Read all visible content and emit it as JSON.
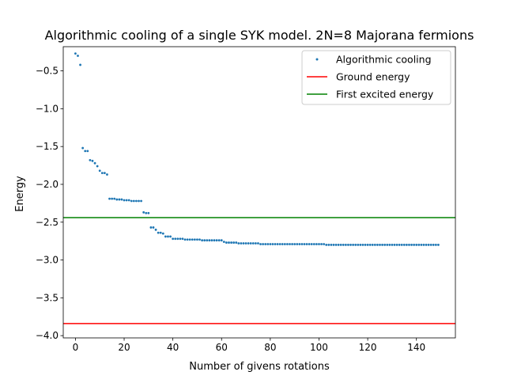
{
  "chart_data": {
    "type": "scatter",
    "title": "Algorithmic cooling of a single SYK model. 2N=8 Majorana fermions",
    "xlabel": "Number of givens rotations",
    "ylabel": "Energy",
    "xlim": [
      -5,
      156
    ],
    "ylim": [
      -4.03,
      -0.18
    ],
    "xticks": [
      0,
      20,
      40,
      60,
      80,
      100,
      120,
      140
    ],
    "xtick_labels": [
      "0",
      "20",
      "40",
      "60",
      "80",
      "100",
      "120",
      "140"
    ],
    "yticks": [
      -0.5,
      -1.0,
      -1.5,
      -2.0,
      -2.5,
      -3.0,
      -3.5,
      -4.0
    ],
    "ytick_labels": [
      "−0.5",
      "−1.0",
      "−1.5",
      "−2.0",
      "−2.5",
      "−3.0",
      "−3.5",
      "−4.0"
    ],
    "grid": false,
    "legend_position": "top-right",
    "series": [
      {
        "name": "Algorithmic cooling",
        "kind": "points",
        "color": "#1f77b4",
        "x": [
          0,
          1,
          2,
          3,
          4,
          5,
          6,
          7,
          8,
          9,
          10,
          11,
          12,
          13,
          14,
          15,
          16,
          17,
          18,
          19,
          20,
          21,
          22,
          23,
          24,
          25,
          26,
          27,
          28,
          29,
          30,
          31,
          32,
          33,
          34,
          35,
          36,
          37,
          38,
          39,
          40,
          41,
          42,
          43,
          44,
          45,
          46,
          47,
          48,
          49,
          50,
          51,
          52,
          53,
          54,
          55,
          56,
          57,
          58,
          59,
          60,
          61,
          62,
          63,
          64,
          65,
          66,
          67,
          68,
          69,
          70,
          71,
          72,
          73,
          74,
          75,
          76,
          77,
          78,
          79,
          80,
          81,
          82,
          83,
          84,
          85,
          86,
          87,
          88,
          89,
          90,
          91,
          92,
          93,
          94,
          95,
          96,
          97,
          98,
          99,
          100,
          101,
          102,
          103,
          104,
          105,
          106,
          107,
          108,
          109,
          110,
          111,
          112,
          113,
          114,
          115,
          116,
          117,
          118,
          119,
          120,
          121,
          122,
          123,
          124,
          125,
          126,
          127,
          128,
          129,
          130,
          131,
          132,
          133,
          134,
          135,
          136,
          137,
          138,
          139,
          140,
          141,
          142,
          143,
          144,
          145,
          146,
          147,
          148,
          149
        ],
        "y": [
          -0.27,
          -0.3,
          -0.42,
          -1.52,
          -1.56,
          -1.56,
          -1.68,
          -1.69,
          -1.72,
          -1.76,
          -1.82,
          -1.85,
          -1.85,
          -1.87,
          -2.19,
          -2.19,
          -2.19,
          -2.2,
          -2.2,
          -2.2,
          -2.21,
          -2.21,
          -2.21,
          -2.22,
          -2.22,
          -2.22,
          -2.22,
          -2.22,
          -2.37,
          -2.38,
          -2.38,
          -2.57,
          -2.57,
          -2.6,
          -2.64,
          -2.64,
          -2.65,
          -2.69,
          -2.69,
          -2.69,
          -2.72,
          -2.72,
          -2.72,
          -2.72,
          -2.72,
          -2.73,
          -2.73,
          -2.73,
          -2.73,
          -2.73,
          -2.73,
          -2.73,
          -2.74,
          -2.74,
          -2.74,
          -2.74,
          -2.74,
          -2.74,
          -2.74,
          -2.74,
          -2.74,
          -2.76,
          -2.77,
          -2.77,
          -2.77,
          -2.77,
          -2.77,
          -2.78,
          -2.78,
          -2.78,
          -2.78,
          -2.78,
          -2.78,
          -2.78,
          -2.78,
          -2.78,
          -2.79,
          -2.79,
          -2.79,
          -2.79,
          -2.79,
          -2.79,
          -2.79,
          -2.79,
          -2.79,
          -2.79,
          -2.79,
          -2.79,
          -2.79,
          -2.79,
          -2.79,
          -2.79,
          -2.79,
          -2.79,
          -2.79,
          -2.79,
          -2.79,
          -2.79,
          -2.79,
          -2.79,
          -2.79,
          -2.79,
          -2.79,
          -2.8,
          -2.8,
          -2.8,
          -2.8,
          -2.8,
          -2.8,
          -2.8,
          -2.8,
          -2.8,
          -2.8,
          -2.8,
          -2.8,
          -2.8,
          -2.8,
          -2.8,
          -2.8,
          -2.8,
          -2.8,
          -2.8,
          -2.8,
          -2.8,
          -2.8,
          -2.8,
          -2.8,
          -2.8,
          -2.8,
          -2.8,
          -2.8,
          -2.8,
          -2.8,
          -2.8,
          -2.8,
          -2.8,
          -2.8,
          -2.8,
          -2.8,
          -2.8,
          -2.8,
          -2.8,
          -2.8,
          -2.8,
          -2.8,
          -2.8,
          -2.8,
          -2.8,
          -2.8,
          -2.8
        ]
      },
      {
        "name": "Ground energy",
        "kind": "hline",
        "color": "#ff0000",
        "y": -3.84
      },
      {
        "name": "First excited energy",
        "kind": "hline",
        "color": "#008000",
        "y": -2.44
      }
    ]
  }
}
